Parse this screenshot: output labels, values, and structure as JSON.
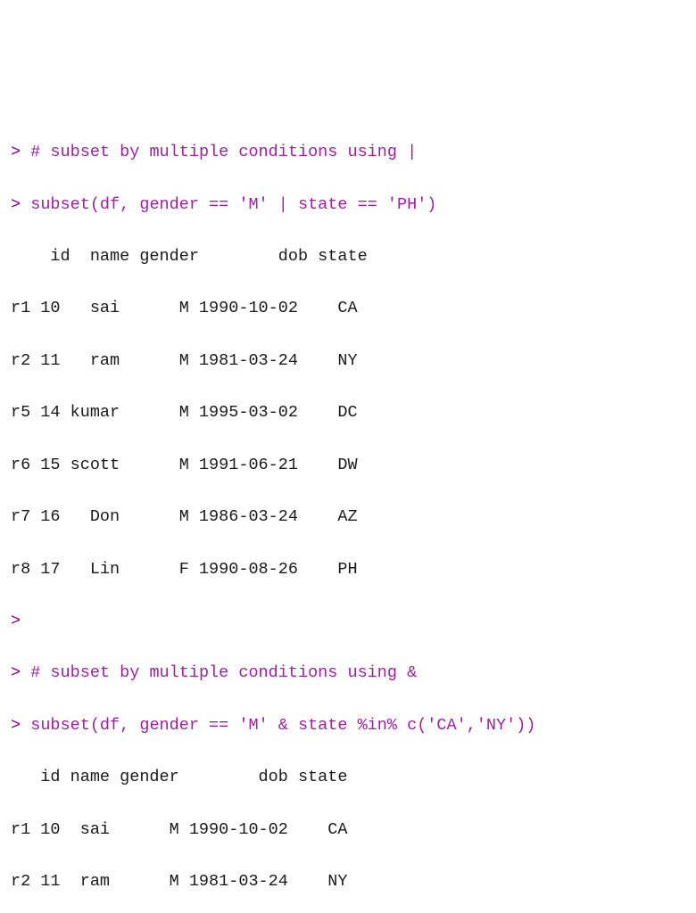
{
  "console": {
    "prompt_char": ">",
    "prompt_color": "#8b008b",
    "code_color": "#a020a0",
    "output_color": "#1a1a1a",
    "background_color": "#ffffff",
    "font_family": "Menlo, Consolas, Courier New, monospace",
    "font_size": 18.5,
    "line_height": 1.58,
    "blocks": [
      {
        "type": "code",
        "lines": [
          "# subset by multiple conditions using |",
          "subset(df, gender == 'M' | state == 'PH')"
        ],
        "output": {
          "header": "    id  name gender        dob state",
          "rows": [
            "r1 10   sai      M 1990-10-02    CA",
            "r2 11   ram      M 1981-03-24    NY",
            "r5 14 kumar      M 1995-03-02    DC",
            "r6 15 scott      M 1991-06-21    DW",
            "r7 16   Don      M 1986-03-24    AZ",
            "r8 17   Lin      F 1990-08-26    PH"
          ],
          "table": {
            "columns": [
              "id",
              "name",
              "gender",
              "dob",
              "state"
            ],
            "rownames": [
              "r1",
              "r2",
              "r5",
              "r6",
              "r7",
              "r8"
            ],
            "data": [
              [
                10,
                "sai",
                "M",
                "1990-10-02",
                "CA"
              ],
              [
                11,
                "ram",
                "M",
                "1981-03-24",
                "NY"
              ],
              [
                14,
                "kumar",
                "M",
                "1995-03-02",
                "DC"
              ],
              [
                15,
                "scott",
                "M",
                "1991-06-21",
                "DW"
              ],
              [
                16,
                "Don",
                "M",
                "1986-03-24",
                "AZ"
              ],
              [
                17,
                "Lin",
                "F",
                "1990-08-26",
                "PH"
              ]
            ]
          }
        }
      },
      {
        "type": "prompt_blank"
      },
      {
        "type": "code",
        "lines": [
          "# subset by multiple conditions using &",
          "subset(df, gender == 'M' & state %in% c('CA','NY'))"
        ],
        "output": {
          "header": "   id name gender        dob state",
          "rows": [
            "r1 10  sai      M 1990-10-02    CA",
            "r2 11  ram      M 1981-03-24    NY"
          ],
          "table": {
            "columns": [
              "id",
              "name",
              "gender",
              "dob",
              "state"
            ],
            "rownames": [
              "r1",
              "r2"
            ],
            "data": [
              [
                10,
                "sai",
                "M",
                "1990-10-02",
                "CA"
              ],
              [
                11,
                "ram",
                "M",
                "1981-03-24",
                "NY"
              ]
            ]
          }
        }
      }
    ]
  }
}
